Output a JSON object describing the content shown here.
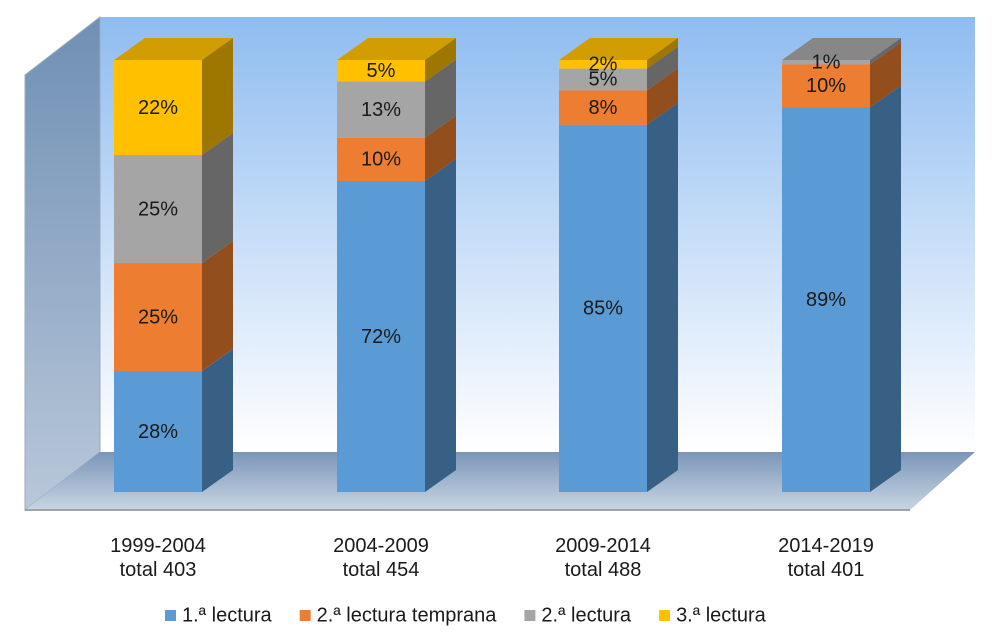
{
  "chart_data": {
    "type": "bar",
    "stacked": true,
    "percent": true,
    "style": "3d",
    "categories": [
      {
        "period": "1999-2004",
        "total": "total 403"
      },
      {
        "period": "2004-2009",
        "total": "total 454"
      },
      {
        "period": "2009-2014",
        "total": "total 488"
      },
      {
        "period": "2014-2019",
        "total": "total 401"
      }
    ],
    "series": [
      {
        "name": "1.ª lectura",
        "color": "#5b9bd5",
        "values": [
          28,
          72,
          85,
          89
        ],
        "labels": [
          "28%",
          "72%",
          "85%",
          "89%"
        ]
      },
      {
        "name": "2.ª lectura temprana",
        "color": "#ed7d31",
        "values": [
          25,
          10,
          8,
          10
        ],
        "labels": [
          "25%",
          "10%",
          "8%",
          "10%"
        ]
      },
      {
        "name": "2.ª lectura",
        "color": "#a5a5a5",
        "values": [
          25,
          13,
          5,
          1
        ],
        "labels": [
          "25%",
          "13%",
          "5%",
          "1%"
        ]
      },
      {
        "name": "3.ª lectura",
        "color": "#ffc000",
        "values": [
          22,
          5,
          2,
          0
        ],
        "labels": [
          "22%",
          "5%",
          "2%",
          ""
        ]
      }
    ],
    "ylim": [
      0,
      100
    ],
    "legend_position": "bottom",
    "grid": false
  }
}
